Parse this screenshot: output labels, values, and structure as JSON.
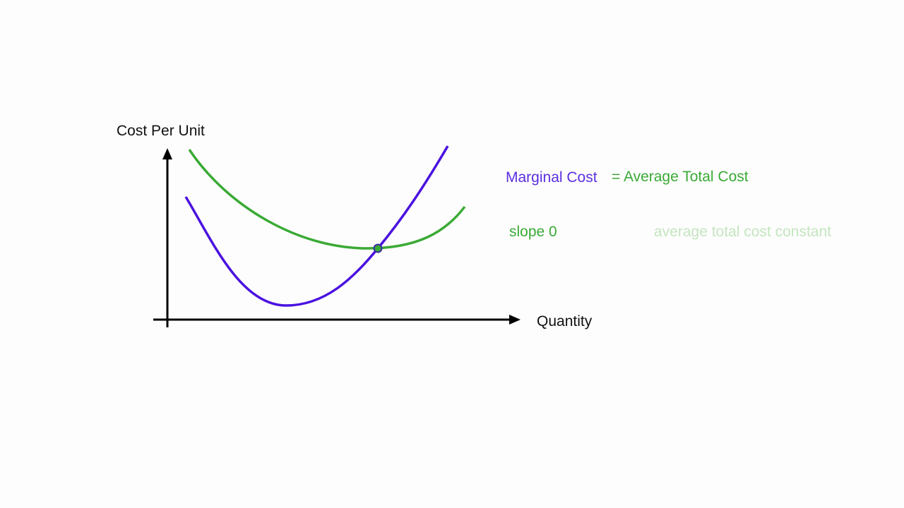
{
  "axes": {
    "y_label": "Cost Per Unit",
    "x_label": "Quantity"
  },
  "equation": {
    "left": "Marginal Cost",
    "right": "= Average Total Cost"
  },
  "notes": {
    "slope": "slope 0",
    "constant": "average total cost constant"
  }
}
